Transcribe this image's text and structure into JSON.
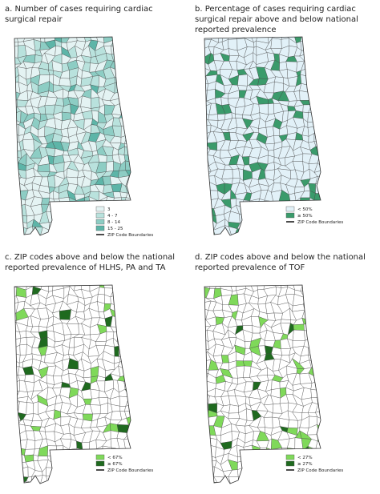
{
  "panels": [
    {
      "title": [
        "a. Number of cases requiring cardiac",
        "surgical repair"
      ],
      "legend": [
        {
          "label": "3",
          "color": "#e4f3f3"
        },
        {
          "label": "4 - 7",
          "color": "#b9e2dd"
        },
        {
          "label": "8 - 14",
          "color": "#8dcdc4"
        },
        {
          "label": "15 - 25",
          "color": "#5db5a8"
        }
      ],
      "boundary_label": "ZIP Code Boundaries"
    },
    {
      "title": [
        "b. Percentage of cases requiring cardiac",
        "surgical repair above and below national",
        "reported prevalence"
      ],
      "legend": [
        {
          "label": "< 50%",
          "color": "#e2f1f8"
        },
        {
          "label": "≥ 50%",
          "color": "#3a9b6b"
        }
      ],
      "boundary_label": "ZIP Code Boundaries"
    },
    {
      "title": [
        "c. ZIP codes above and below the national",
        "reported prevalence of HLHS, PA and TA"
      ],
      "legend": [
        {
          "label": "< 67%",
          "color": "#7fd95a"
        },
        {
          "label": "≥ 67%",
          "color": "#1f6a1f"
        }
      ],
      "boundary_label": "ZIP Code Boundaries"
    },
    {
      "title": [
        "d. ZIP codes above and below the national",
        "reported prevalence of TOF"
      ],
      "legend": [
        {
          "label": "< 27%",
          "color": "#7fd95a"
        },
        {
          "label": "≥ 27%",
          "color": "#1f6a1f"
        }
      ],
      "boundary_label": "ZIP Code Boundaries"
    }
  ]
}
